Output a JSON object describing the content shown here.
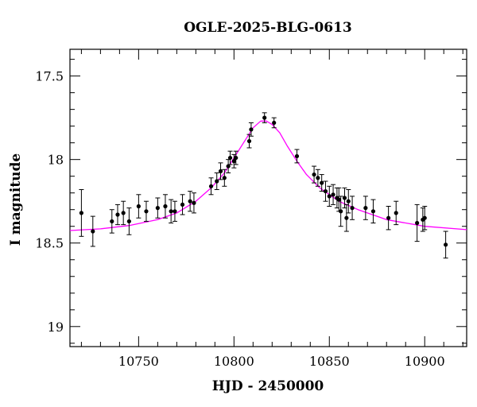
{
  "chart_data": {
    "type": "scatter",
    "title": "OGLE-2025-BLG-0613",
    "xlabel": "HJD - 2450000",
    "ylabel": "I magnitude",
    "xlim": [
      10714,
      10922
    ],
    "ylim": [
      19.12,
      17.34
    ],
    "y_inverted": true,
    "grid": false,
    "x_ticks": [
      10750,
      10800,
      10850,
      10900
    ],
    "x_tick_labels": [
      "10750",
      "10800",
      "10850",
      "10900"
    ],
    "y_ticks": [
      17.5,
      18.0,
      18.5,
      19.0
    ],
    "y_tick_labels": [
      "17.5",
      "18",
      "18.5",
      "19"
    ],
    "colors": {
      "data": "#000000",
      "model": "#ff00ff"
    },
    "series": [
      {
        "kind": "observations",
        "marker": "filled-circle-with-errorbars",
        "x": [
          10720,
          10726,
          10736,
          10739,
          10742,
          10745,
          10750,
          10754,
          10760,
          10764,
          10767,
          10769,
          10773,
          10777,
          10779,
          10788,
          10791,
          10793,
          10795,
          10797,
          10798,
          10800,
          10801,
          10808,
          10809,
          10816,
          10821,
          10833,
          10842,
          10844,
          10846,
          10848,
          10850,
          10852,
          10854,
          10855,
          10856,
          10858,
          10859,
          10860,
          10862,
          10869,
          10873,
          10881,
          10885,
          10896,
          10899,
          10900,
          10911
        ],
        "y": [
          18.32,
          18.43,
          18.37,
          18.33,
          18.32,
          18.37,
          18.28,
          18.31,
          18.29,
          18.28,
          18.31,
          18.31,
          18.27,
          18.25,
          18.26,
          18.16,
          18.13,
          18.07,
          18.11,
          18.04,
          17.99,
          18.01,
          17.99,
          17.89,
          17.82,
          17.75,
          17.78,
          17.98,
          18.09,
          18.11,
          18.14,
          18.19,
          18.22,
          18.21,
          18.23,
          18.24,
          18.31,
          18.23,
          18.35,
          18.25,
          18.29,
          18.29,
          18.31,
          18.35,
          18.32,
          18.38,
          18.36,
          18.35,
          18.51
        ],
        "err": [
          0.14,
          0.09,
          0.07,
          0.06,
          0.07,
          0.08,
          0.07,
          0.06,
          0.06,
          0.07,
          0.07,
          0.06,
          0.06,
          0.06,
          0.06,
          0.05,
          0.05,
          0.05,
          0.05,
          0.04,
          0.04,
          0.04,
          0.04,
          0.04,
          0.04,
          0.03,
          0.03,
          0.04,
          0.05,
          0.05,
          0.05,
          0.06,
          0.06,
          0.06,
          0.06,
          0.07,
          0.09,
          0.06,
          0.08,
          0.07,
          0.07,
          0.07,
          0.07,
          0.07,
          0.07,
          0.11,
          0.07,
          0.07,
          0.08
        ]
      },
      {
        "kind": "model",
        "line": "solid",
        "x": [
          10714,
          10730,
          10745,
          10760,
          10770,
          10780,
          10788,
          10795,
          10800,
          10805,
          10810,
          10814,
          10817,
          10820,
          10824,
          10828,
          10833,
          10838,
          10845,
          10855,
          10865,
          10880,
          10900,
          10922
        ],
        "y": [
          18.425,
          18.415,
          18.395,
          18.36,
          18.32,
          18.25,
          18.17,
          18.08,
          17.99,
          17.9,
          17.81,
          17.77,
          17.77,
          17.79,
          17.84,
          17.92,
          18.01,
          18.09,
          18.17,
          18.25,
          18.3,
          18.36,
          18.4,
          18.42
        ]
      }
    ]
  }
}
